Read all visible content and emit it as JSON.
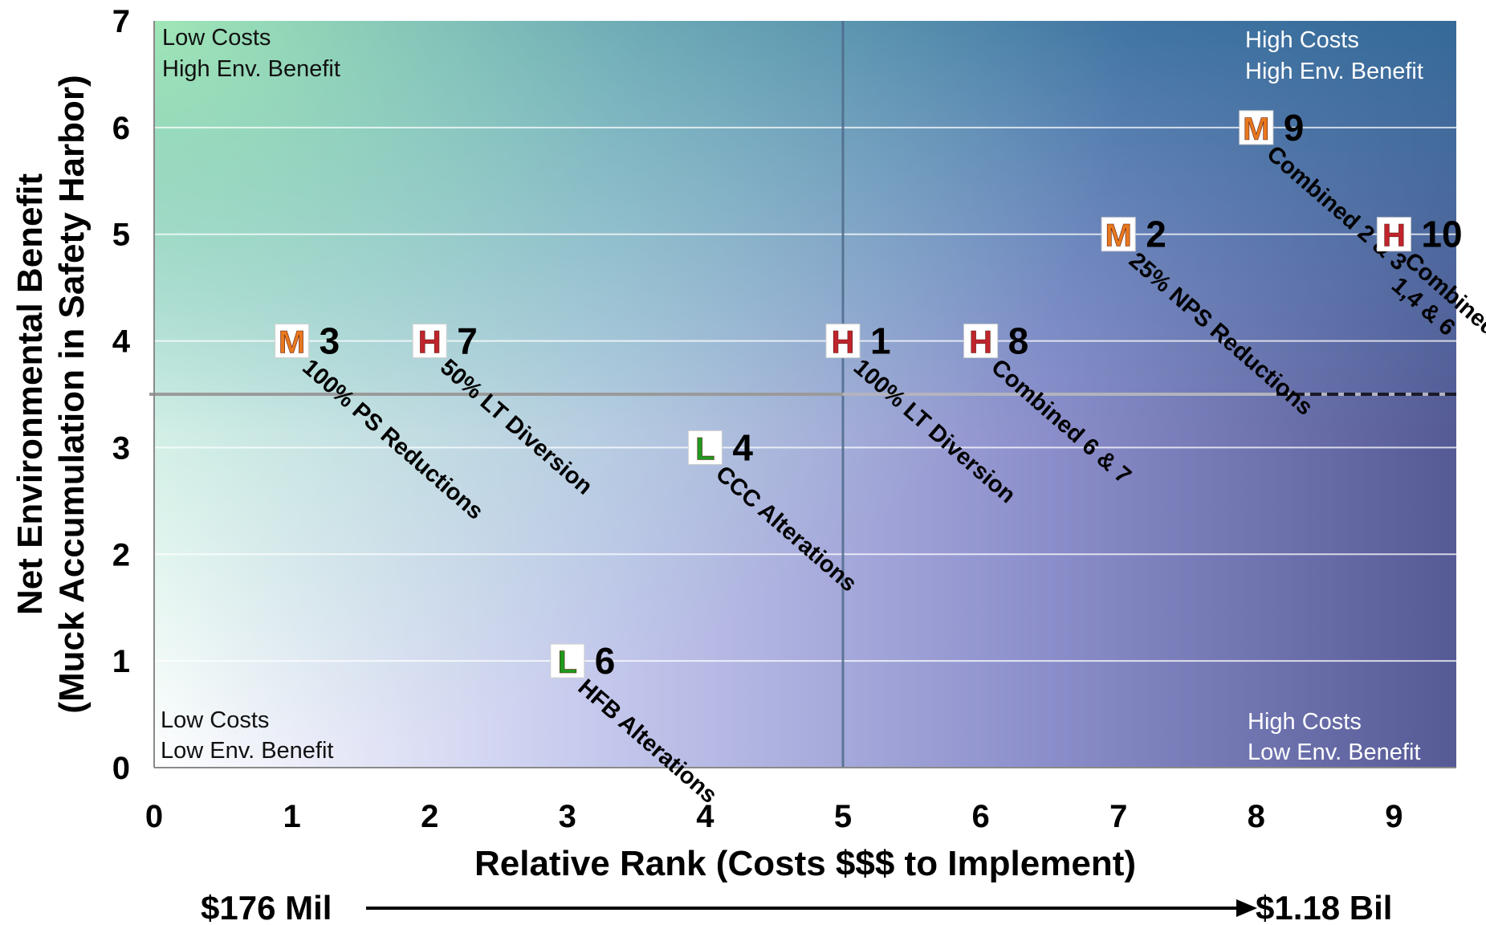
{
  "chart_data": {
    "type": "scatter",
    "xlabel": "Relative Rank (Costs $$$ to Implement)",
    "ylabel": "Net Environmental Benefit",
    "ylabel2": "(Muck Accumulation in Safety Harbor)",
    "xlim": [
      0,
      9.5
    ],
    "ylim": [
      0,
      7
    ],
    "xticks": [
      "0",
      "1",
      "2",
      "3",
      "4",
      "5",
      "6",
      "7",
      "8",
      "9"
    ],
    "yticks": [
      "0",
      "1",
      "2",
      "3",
      "4",
      "5",
      "6",
      "7"
    ],
    "grid": "horizontal",
    "reference_lines": {
      "x": 5,
      "y": 3.5
    },
    "quadrants": {
      "top_left": [
        "Low Costs",
        "High Env. Benefit"
      ],
      "top_right": [
        "High Costs",
        "High Env. Benefit"
      ],
      "bottom_left": [
        "Low Costs",
        "Low Env. Benefit"
      ],
      "bottom_right": [
        "High Costs",
        "Low Env. Benefit"
      ]
    },
    "cost_scale": {
      "low": "$176 Mil",
      "high": "$1.18 Bil"
    },
    "badge_colors": {
      "H": "#c0242c",
      "M": "#e8781e",
      "L": "#1f9a1f"
    },
    "points": [
      {
        "id": "3",
        "x": 1,
        "y": 4,
        "badge": "M",
        "label": [
          "100% PS Reductions"
        ]
      },
      {
        "id": "7",
        "x": 2,
        "y": 4,
        "badge": "H",
        "label": [
          "50% LT Diversion"
        ]
      },
      {
        "id": "6",
        "x": 3,
        "y": 1,
        "badge": "L",
        "label": [
          "HFB Alterations"
        ]
      },
      {
        "id": "4",
        "x": 4,
        "y": 3,
        "badge": "L",
        "label": [
          "CCC Alterations"
        ]
      },
      {
        "id": "1",
        "x": 5,
        "y": 4,
        "badge": "H",
        "label": [
          "100% LT Diversion"
        ]
      },
      {
        "id": "8",
        "x": 6,
        "y": 4,
        "badge": "H",
        "label": [
          "Combined 6 & 7"
        ]
      },
      {
        "id": "2",
        "x": 7,
        "y": 5,
        "badge": "M",
        "label": [
          "25% NPS Reductions"
        ]
      },
      {
        "id": "9",
        "x": 8,
        "y": 6,
        "badge": "M",
        "label": [
          "Combined 2 & 3"
        ]
      },
      {
        "id": "10",
        "x": 9,
        "y": 5,
        "badge": "H",
        "label": [
          "Combined",
          "1,4 & 6"
        ]
      }
    ]
  }
}
